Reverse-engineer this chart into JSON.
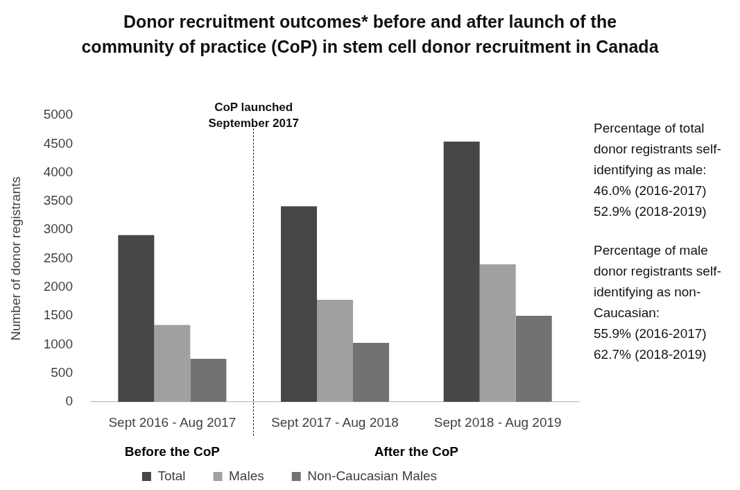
{
  "chart_data": {
    "type": "bar",
    "title": "Donor recruitment outcomes* before and after launch of the\ncommunity of practice (CoP) in stem cell donor recruitment in Canada",
    "ylabel": "Number of donor registrants",
    "categories": [
      "Sept 2016 - Aug 2017",
      "Sept 2017 - Aug 2018",
      "Sept 2018 - Aug 2019"
    ],
    "series": [
      {
        "name": "Total",
        "color": "#474747",
        "values": [
          2910,
          3410,
          4540
        ]
      },
      {
        "name": "Males",
        "color": "#a0a0a0",
        "values": [
          1340,
          1780,
          2400
        ]
      },
      {
        "name": "Non-Caucasian Males",
        "color": "#727272",
        "values": [
          750,
          1030,
          1500
        ]
      }
    ],
    "ylim": [
      0,
      5000
    ],
    "yticks": [
      0,
      500,
      1000,
      1500,
      2000,
      2500,
      3000,
      3500,
      4000,
      4500,
      5000
    ],
    "grid": false,
    "legend": "bottom",
    "annotations": [
      "CoP launched\nSeptember 2017",
      "Before the CoP",
      "After the CoP",
      "Percentage of total\ndonor registrants self-\nidentifying as male:\n46.0% (2016-2017)\n52.9% (2018-2019)",
      "Percentage of male\ndonor registrants self-\nidentifying as non-\nCaucasian:\n55.9% (2016-2017)\n62.7% (2018-2019)"
    ]
  }
}
